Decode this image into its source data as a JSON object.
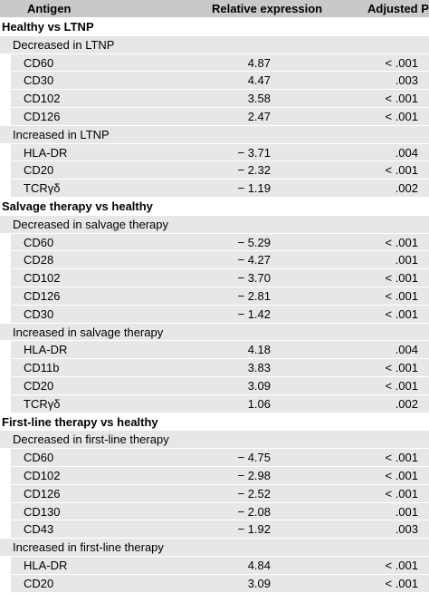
{
  "header": {
    "antigen": "Antigen",
    "relative_expression": "Relative expression",
    "adjusted_p": "Adjusted P"
  },
  "rows": [
    {
      "type": "section",
      "label": "Healthy vs LTNP"
    },
    {
      "type": "subsection",
      "label": "Decreased in LTNP"
    },
    {
      "type": "data",
      "antigen": "CD60",
      "expression": "4.87",
      "p": "< .001"
    },
    {
      "type": "data",
      "antigen": "CD30",
      "expression": "4.47",
      "p": ".003"
    },
    {
      "type": "data",
      "antigen": "CD102",
      "expression": "3.58",
      "p": "< .001"
    },
    {
      "type": "data",
      "antigen": "CD126",
      "expression": "2.47",
      "p": "< .001"
    },
    {
      "type": "subsection",
      "label": "Increased in LTNP"
    },
    {
      "type": "data",
      "antigen": "HLA-DR",
      "expression": "− 3.71",
      "p": ".004"
    },
    {
      "type": "data",
      "antigen": "CD20",
      "expression": "− 2.32",
      "p": "< .001"
    },
    {
      "type": "data",
      "antigen": "TCRγδ",
      "expression": "− 1.19",
      "p": ".002"
    },
    {
      "type": "section",
      "label": "Salvage therapy vs healthy"
    },
    {
      "type": "subsection",
      "label": "Decreased in salvage therapy"
    },
    {
      "type": "data",
      "antigen": "CD60",
      "expression": "− 5.29",
      "p": "< .001"
    },
    {
      "type": "data",
      "antigen": "CD28",
      "expression": "− 4.27",
      "p": ".001"
    },
    {
      "type": "data",
      "antigen": "CD102",
      "expression": "− 3.70",
      "p": "< .001"
    },
    {
      "type": "data",
      "antigen": "CD126",
      "expression": "− 2.81",
      "p": "< .001"
    },
    {
      "type": "data",
      "antigen": "CD30",
      "expression": "− 1.42",
      "p": "< .001"
    },
    {
      "type": "subsection",
      "label": "Increased in salvage therapy"
    },
    {
      "type": "data",
      "antigen": "HLA-DR",
      "expression": "4.18",
      "p": ".004"
    },
    {
      "type": "data",
      "antigen": "CD11b",
      "expression": "3.83",
      "p": "< .001"
    },
    {
      "type": "data",
      "antigen": "CD20",
      "expression": "3.09",
      "p": "< .001"
    },
    {
      "type": "data",
      "antigen": "TCRγδ",
      "expression": "1.06",
      "p": ".002"
    },
    {
      "type": "section",
      "label": "First-line therapy vs healthy"
    },
    {
      "type": "subsection",
      "label": "Decreased in first-line therapy"
    },
    {
      "type": "data",
      "antigen": "CD60",
      "expression": "− 4.75",
      "p": "< .001"
    },
    {
      "type": "data",
      "antigen": "CD102",
      "expression": "− 2.98",
      "p": "< .001"
    },
    {
      "type": "data",
      "antigen": "CD126",
      "expression": "− 2.52",
      "p": "< .001"
    },
    {
      "type": "data",
      "antigen": "CD130",
      "expression": "− 2.08",
      "p": ".001"
    },
    {
      "type": "data",
      "antigen": "CD43",
      "expression": "− 1.92",
      "p": ".003"
    },
    {
      "type": "subsection",
      "label": "Increased in first-line therapy"
    },
    {
      "type": "data",
      "antigen": "HLA-DR",
      "expression": "4.84",
      "p": "< .001"
    },
    {
      "type": "data",
      "antigen": "CD20",
      "expression": "3.09",
      "p": "< .001"
    }
  ]
}
